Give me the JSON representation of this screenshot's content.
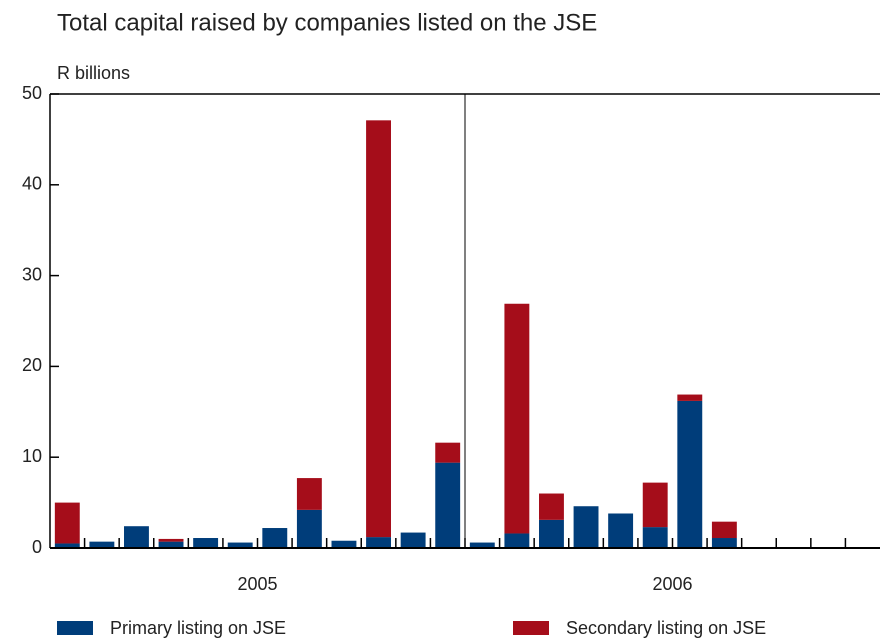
{
  "chart_data": {
    "type": "stacked_bar",
    "title": "Total capital raised by companies listed on the JSE",
    "ylabel": "R billions",
    "categories": [
      null,
      null,
      null,
      null,
      null,
      null,
      null,
      null,
      null,
      null,
      null,
      null,
      null,
      null,
      null,
      null,
      null,
      null,
      null,
      null,
      null,
      null,
      null,
      null
    ],
    "group_labels": [
      "2005",
      "2006"
    ],
    "series": [
      {
        "name": "Primary listing on JSE",
        "color": "#003d7a",
        "values": [
          0.5,
          0.7,
          2.4,
          0.7,
          1.1,
          0.6,
          2.2,
          4.2,
          0.8,
          1.2,
          1.7,
          9.4,
          0.6,
          1.6,
          3.1,
          4.6,
          3.8,
          2.3,
          16.2,
          1.1,
          null,
          null,
          null,
          null
        ]
      },
      {
        "name": "Secondary listing on JSE",
        "color": "#a50d1a",
        "values": [
          4.5,
          0,
          0,
          0.3,
          0,
          0,
          0,
          3.5,
          0,
          45.9,
          0,
          2.2,
          0,
          25.3,
          2.9,
          0,
          0,
          4.9,
          0.7,
          1.8,
          null,
          null,
          null,
          null
        ]
      }
    ],
    "ylim": [
      0,
      50
    ],
    "yticks": [
      0,
      10,
      20,
      30,
      40,
      50
    ]
  }
}
